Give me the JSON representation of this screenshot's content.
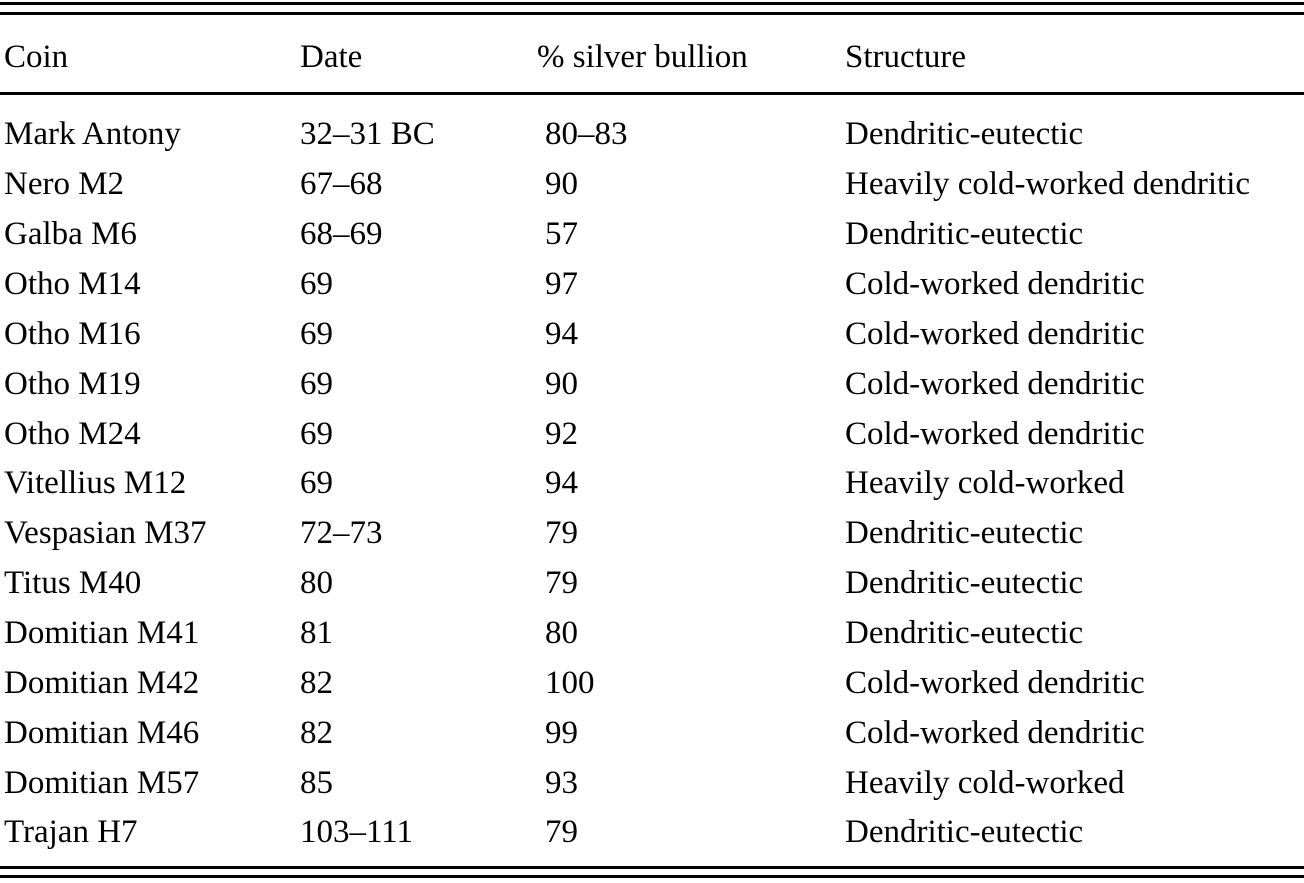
{
  "page": {
    "background_color": "#ffffff",
    "text_color": "#000000",
    "rule_color": "#000000"
  },
  "table": {
    "columns": [
      "Coin",
      "Date",
      "% silver bullion",
      "Structure"
    ],
    "rows": [
      {
        "coin": "Mark Antony",
        "date": "32–31 BC",
        "silver": "80–83",
        "structure": "Dendritic-eutectic"
      },
      {
        "coin": "Nero M2",
        "date": "67–68",
        "silver": "90",
        "structure": "Heavily cold-worked dendritic"
      },
      {
        "coin": "Galba M6",
        "date": "68–69",
        "silver": "57",
        "structure": "Dendritic-eutectic"
      },
      {
        "coin": "Otho M14",
        "date": "69",
        "silver": "97",
        "structure": "Cold-worked dendritic"
      },
      {
        "coin": "Otho M16",
        "date": "69",
        "silver": "94",
        "structure": "Cold-worked dendritic"
      },
      {
        "coin": "Otho M19",
        "date": "69",
        "silver": "90",
        "structure": "Cold-worked dendritic"
      },
      {
        "coin": "Otho M24",
        "date": "69",
        "silver": "92",
        "structure": "Cold-worked dendritic"
      },
      {
        "coin": "Vitellius M12",
        "date": "69",
        "silver": "94",
        "structure": "Heavily cold-worked"
      },
      {
        "coin": "Vespasian M37",
        "date": "72–73",
        "silver": "79",
        "structure": "Dendritic-eutectic"
      },
      {
        "coin": "Titus M40",
        "date": "80",
        "silver": "79",
        "structure": "Dendritic-eutectic"
      },
      {
        "coin": "Domitian M41",
        "date": "81",
        "silver": "80",
        "structure": "Dendritic-eutectic"
      },
      {
        "coin": "Domitian M42",
        "date": "82",
        "silver": "100",
        "structure": "Cold-worked dendritic"
      },
      {
        "coin": "Domitian M46",
        "date": "82",
        "silver": "99",
        "structure": "Cold-worked dendritic"
      },
      {
        "coin": "Domitian M57",
        "date": "85",
        "silver": "93",
        "structure": "Heavily cold-worked"
      },
      {
        "coin": "Trajan H7",
        "date": "103–111",
        "silver": "79",
        "structure": "Dendritic-eutectic"
      }
    ]
  },
  "chart_data": {
    "type": "table",
    "columns": [
      "Coin",
      "Date",
      "% silver bullion",
      "Structure"
    ],
    "rows": [
      [
        "Mark Antony",
        "32–31 BC",
        "80–83",
        "Dendritic-eutectic"
      ],
      [
        "Nero M2",
        "67–68",
        "90",
        "Heavily cold-worked dendritic"
      ],
      [
        "Galba M6",
        "68–69",
        "57",
        "Dendritic-eutectic"
      ],
      [
        "Otho M14",
        "69",
        "97",
        "Cold-worked dendritic"
      ],
      [
        "Otho M16",
        "69",
        "94",
        "Cold-worked dendritic"
      ],
      [
        "Otho M19",
        "69",
        "90",
        "Cold-worked dendritic"
      ],
      [
        "Otho M24",
        "69",
        "92",
        "Cold-worked dendritic"
      ],
      [
        "Vitellius M12",
        "69",
        "94",
        "Heavily cold-worked"
      ],
      [
        "Vespasian M37",
        "72–73",
        "79",
        "Dendritic-eutectic"
      ],
      [
        "Titus M40",
        "80",
        "79",
        "Dendritic-eutectic"
      ],
      [
        "Domitian M41",
        "81",
        "80",
        "Dendritic-eutectic"
      ],
      [
        "Domitian M42",
        "82",
        "100",
        "Cold-worked dendritic"
      ],
      [
        "Domitian M46",
        "82",
        "99",
        "Cold-worked dendritic"
      ],
      [
        "Domitian M57",
        "85",
        "93",
        "Heavily cold-worked"
      ],
      [
        "Trajan H7",
        "103–111",
        "79",
        "Dendritic-eutectic"
      ]
    ]
  }
}
